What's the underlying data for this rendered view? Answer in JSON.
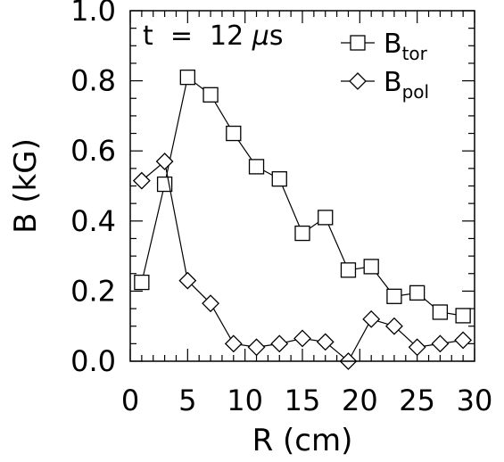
{
  "chart_data": {
    "type": "line",
    "xlabel": "R (cm)",
    "ylabel": "B (kG)",
    "xlim": [
      0,
      30
    ],
    "ylim": [
      0,
      1.0
    ],
    "x_ticks": [
      0,
      5,
      10,
      15,
      20,
      25,
      30
    ],
    "y_ticks": [
      0.0,
      0.2,
      0.4,
      0.6,
      0.8,
      1.0
    ],
    "x_tick_labels": [
      "0",
      "5",
      "10",
      "15",
      "20",
      "25",
      "30"
    ],
    "y_tick_labels": [
      "0.0",
      "0.2",
      "0.4",
      "0.6",
      "0.8",
      "1.0"
    ],
    "grid": false,
    "legend_position": "top-right",
    "annotation": {
      "prefix": "t  =  12 ",
      "mu": "μ",
      "unit": "s"
    },
    "series": [
      {
        "name": "B",
        "subscript": "tor",
        "marker": "square",
        "x": [
          1,
          3,
          5,
          7,
          9,
          11,
          13,
          15,
          17,
          19,
          21,
          23,
          25,
          27,
          29
        ],
        "y": [
          0.225,
          0.505,
          0.81,
          0.76,
          0.65,
          0.555,
          0.52,
          0.365,
          0.41,
          0.26,
          0.27,
          0.185,
          0.195,
          0.14,
          0.13
        ]
      },
      {
        "name": "B",
        "subscript": "pol",
        "marker": "diamond",
        "x": [
          1,
          3,
          5,
          7,
          9,
          11,
          13,
          15,
          17,
          19,
          21,
          23,
          25,
          27,
          29
        ],
        "y": [
          0.515,
          0.57,
          0.23,
          0.165,
          0.05,
          0.04,
          0.05,
          0.065,
          0.055,
          0.0,
          0.12,
          0.1,
          0.04,
          0.05,
          0.06
        ]
      }
    ]
  }
}
